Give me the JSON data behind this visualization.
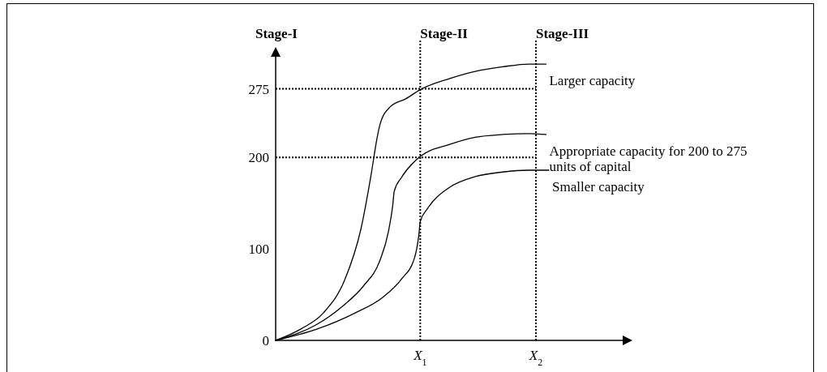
{
  "chart_data": {
    "type": "line",
    "annotations": [
      "Stage-I"
    ],
    "xlim": [
      0,
      2.4
    ],
    "xticks": [
      {
        "value": 1,
        "label": "X$_{1}$"
      },
      {
        "value": 1.8,
        "label": "X$_{2}$"
      }
    ],
    "ylim": [
      0,
      310
    ],
    "yticks": [
      0,
      100,
      200,
      275
    ],
    "grid": false,
    "marker": "none",
    "line_style": "solid",
    "ref_lines": [
      {
        "axis": "y",
        "value": 275,
        "line_style": "dotted"
      },
      {
        "axis": "y",
        "value": 200,
        "line_style": "dotted"
      },
      {
        "axis": "x",
        "value": 1,
        "label": "Stage-II",
        "line_style": "dotted"
      },
      {
        "axis": "x",
        "value": 1.8,
        "label": "Stage-III",
        "line_style": "dotted"
      }
    ],
    "series": [
      {
        "name": "Larger capacity",
        "color": "#000000",
        "x": [
          0,
          0.18,
          0.33,
          0.48,
          0.59,
          0.66,
          0.7,
          0.72,
          0.79,
          0.9,
          1,
          1.2,
          1.38,
          1.57,
          1.75,
          1.87
        ],
        "values": [
          0,
          13,
          30,
          67,
          122,
          181,
          220,
          235,
          255,
          264,
          274,
          286,
          294,
          299,
          302,
          302
        ]
      },
      {
        "name": "Appropriate capacity for 200 to 275 units of capital",
        "color": "#000000",
        "x": [
          0,
          0.28,
          0.46,
          0.61,
          0.72,
          0.78,
          0.81,
          0.82,
          0.87,
          1,
          1.2,
          1.38,
          1.57,
          1.75,
          1.87
        ],
        "values": [
          0,
          17,
          37,
          60,
          87,
          119,
          148,
          163,
          178,
          201,
          214,
          222,
          225,
          226,
          225
        ]
      },
      {
        "name": "Smaller capacity",
        "color": "#000000",
        "x": [
          0,
          0.28,
          0.55,
          0.74,
          0.87,
          0.96,
          0.99,
          1,
          1.05,
          1.2,
          1.38,
          1.57,
          1.75,
          1.89
        ],
        "values": [
          0,
          12,
          30,
          47,
          67,
          90,
          115,
          130,
          144,
          167,
          179,
          184,
          186,
          186
        ]
      }
    ]
  }
}
